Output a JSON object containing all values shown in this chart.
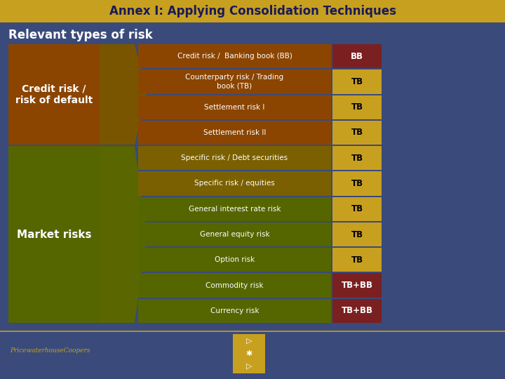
{
  "title": "Annex I: Applying Consolidation Techniques",
  "subtitle": "Relevant types of risk",
  "title_bg": "#C8A020",
  "bg_color": "#3A4A7A",
  "credit_risk_label": "Credit risk /\nrisk of default",
  "market_risks_label": "Market risks",
  "credit_box_color": "#8B4500",
  "market_box_color": "#556600",
  "credit_arrow_color": "#7A5500",
  "market_arrow_color": "#5A6600",
  "rows": [
    {
      "label": "Credit risk /  Banking book (BB)",
      "tag": "BB",
      "label_bg": "#8B4500",
      "tag_bg": "#7A2020",
      "tag_text": "#FFFFFF",
      "group": "credit"
    },
    {
      "label": "Counterparty risk / Trading\nbook (TB)",
      "tag": "TB",
      "label_bg": "#8B4500",
      "tag_bg": "#C8A020",
      "tag_text": "#000000",
      "group": "credit"
    },
    {
      "label": "Settlement risk I",
      "tag": "TB",
      "label_bg": "#8B4500",
      "tag_bg": "#C8A020",
      "tag_text": "#000000",
      "group": "credit"
    },
    {
      "label": "Settlement risk II",
      "tag": "TB",
      "label_bg": "#8B4500",
      "tag_bg": "#C8A020",
      "tag_text": "#000000",
      "group": "credit"
    },
    {
      "label": "Specific risk / Debt securities",
      "tag": "TB",
      "label_bg": "#7A6000",
      "tag_bg": "#C8A020",
      "tag_text": "#000000",
      "group": "market"
    },
    {
      "label": "Specific risk / equities",
      "tag": "TB",
      "label_bg": "#7A6000",
      "tag_bg": "#C8A020",
      "tag_text": "#000000",
      "group": "market"
    },
    {
      "label": "General interest rate risk",
      "tag": "TB",
      "label_bg": "#556600",
      "tag_bg": "#C8A020",
      "tag_text": "#000000",
      "group": "market"
    },
    {
      "label": "General equity risk",
      "tag": "TB",
      "label_bg": "#556600",
      "tag_bg": "#C8A020",
      "tag_text": "#000000",
      "group": "market"
    },
    {
      "label": "Option risk",
      "tag": "TB",
      "label_bg": "#556600",
      "tag_bg": "#C8A020",
      "tag_text": "#000000",
      "group": "market"
    },
    {
      "label": "Commodity risk",
      "tag": "TB+BB",
      "label_bg": "#556600",
      "tag_bg": "#7A2020",
      "tag_text": "#FFFFFF",
      "group": "market"
    },
    {
      "label": "Currency risk",
      "tag": "TB+BB",
      "label_bg": "#556600",
      "tag_bg": "#7A2020",
      "tag_text": "#FFFFFF",
      "group": "market"
    }
  ],
  "pwc_text": "PricewaterhouseCoopers",
  "nav_color": "#C8A020",
  "fig_w": 7.2,
  "fig_h": 5.4,
  "dpi": 100
}
